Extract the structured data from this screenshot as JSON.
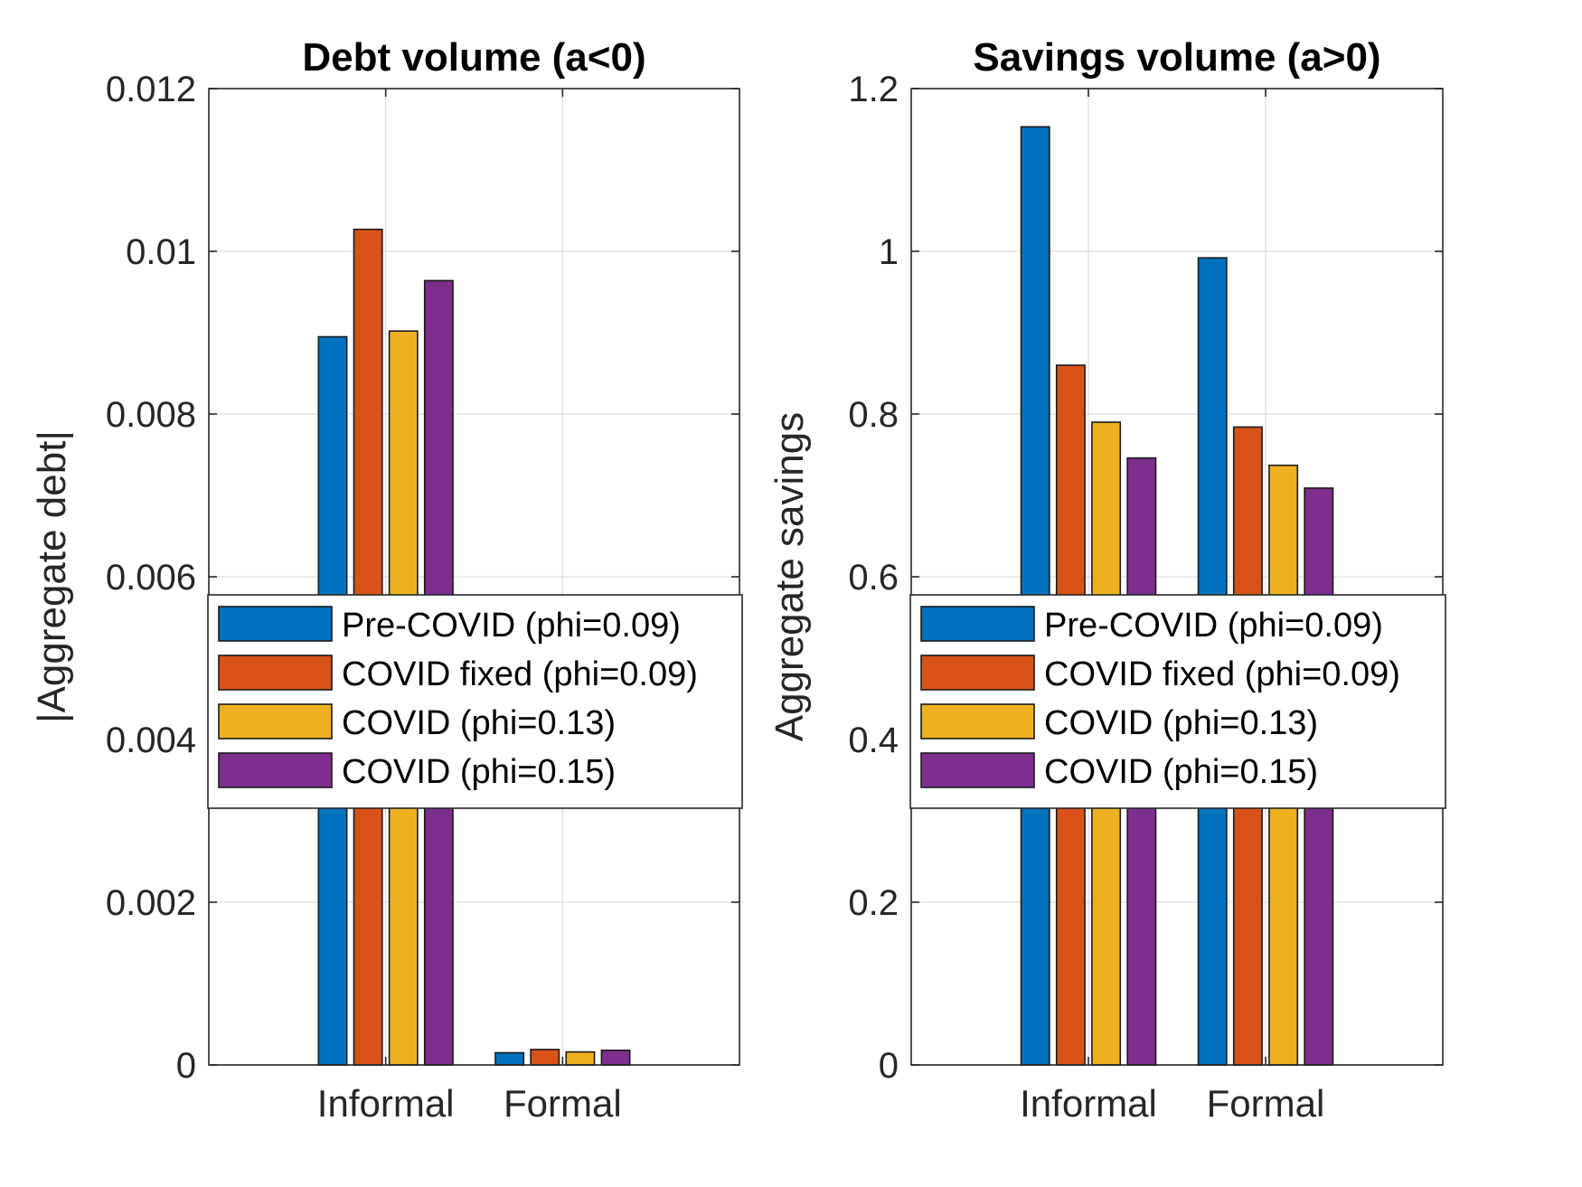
{
  "figure": {
    "legend_location": "middle"
  },
  "chart_data": [
    {
      "type": "bar",
      "title": "Debt volume (a<0)",
      "xlabel": "",
      "ylabel": "|Aggregate debt|",
      "categories": [
        "Informal",
        "Formal"
      ],
      "ylim": [
        0,
        0.012
      ],
      "yticks": [
        0,
        0.002,
        0.004,
        0.006,
        0.008,
        0.01,
        0.012
      ],
      "ytick_labels": [
        "0",
        "0.002",
        "0.004",
        "0.006",
        "0.008",
        "0.01",
        "0.012"
      ],
      "grid": true,
      "legend": "middle",
      "series": [
        {
          "name": "Pre-COVID (phi=0.09)",
          "color": "#0072BD",
          "values": [
            0.00895,
            0.00015
          ]
        },
        {
          "name": "COVID fixed (phi=0.09)",
          "color": "#D95319",
          "values": [
            0.01027,
            0.00019
          ]
        },
        {
          "name": "COVID (phi=0.13)",
          "color": "#EDB120",
          "values": [
            0.00902,
            0.00016
          ]
        },
        {
          "name": "COVID (phi=0.15)",
          "color": "#7E2F8E",
          "values": [
            0.00964,
            0.00018
          ]
        }
      ]
    },
    {
      "type": "bar",
      "title": "Savings volume (a>0)",
      "xlabel": "",
      "ylabel": "Aggregate savings",
      "categories": [
        "Informal",
        "Formal"
      ],
      "ylim": [
        0,
        1.2
      ],
      "yticks": [
        0,
        0.2,
        0.4,
        0.6,
        0.8,
        1,
        1.2
      ],
      "ytick_labels": [
        "0",
        "0.2",
        "0.4",
        "0.6",
        "0.8",
        "1",
        "1.2"
      ],
      "grid": true,
      "legend": "middle",
      "series": [
        {
          "name": "Pre-COVID (phi=0.09)",
          "color": "#0072BD",
          "values": [
            1.153,
            0.992
          ]
        },
        {
          "name": "COVID fixed (phi=0.09)",
          "color": "#D95319",
          "values": [
            0.86,
            0.784
          ]
        },
        {
          "name": "COVID (phi=0.13)",
          "color": "#EDB120",
          "values": [
            0.79,
            0.737
          ]
        },
        {
          "name": "COVID (phi=0.15)",
          "color": "#7E2F8E",
          "values": [
            0.746,
            0.709
          ]
        }
      ]
    }
  ]
}
